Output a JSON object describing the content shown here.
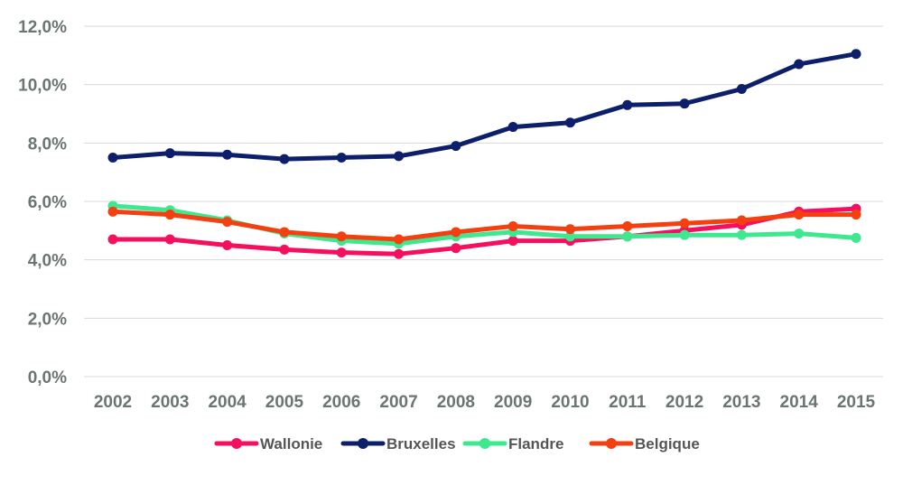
{
  "chart_data": {
    "type": "line",
    "title": "",
    "xlabel": "",
    "ylabel": "",
    "x": [
      "2002",
      "2003",
      "2004",
      "2005",
      "2006",
      "2007",
      "2008",
      "2009",
      "2010",
      "2011",
      "2012",
      "2013",
      "2014",
      "2015"
    ],
    "ylim": [
      0,
      12
    ],
    "yticks": [
      0,
      2,
      4,
      6,
      8,
      10,
      12
    ],
    "ytick_labels": [
      "0,0%",
      "2,0%",
      "4,0%",
      "6,0%",
      "8,0%",
      "10,0%",
      "12,0%"
    ],
    "grid": true,
    "legend_position": "bottom",
    "series": [
      {
        "name": "Wallonie",
        "color": "#f5105f",
        "values": [
          4.7,
          4.7,
          4.5,
          4.35,
          4.25,
          4.2,
          4.4,
          4.65,
          4.65,
          4.8,
          5.0,
          5.2,
          5.65,
          5.75
        ]
      },
      {
        "name": "Bruxelles",
        "color": "#0d1f6b",
        "values": [
          7.5,
          7.65,
          7.6,
          7.45,
          7.5,
          7.55,
          7.9,
          8.55,
          8.7,
          9.3,
          9.35,
          9.85,
          10.7,
          11.05
        ]
      },
      {
        "name": "Flandre",
        "color": "#3ee88e",
        "values": [
          5.85,
          5.7,
          5.35,
          4.9,
          4.65,
          4.55,
          4.8,
          4.95,
          4.8,
          4.8,
          4.85,
          4.85,
          4.9,
          4.75
        ]
      },
      {
        "name": "Belgique",
        "color": "#f43f10",
        "values": [
          5.65,
          5.55,
          5.3,
          4.95,
          4.8,
          4.7,
          4.95,
          5.15,
          5.05,
          5.15,
          5.25,
          5.35,
          5.55,
          5.55
        ]
      }
    ]
  }
}
